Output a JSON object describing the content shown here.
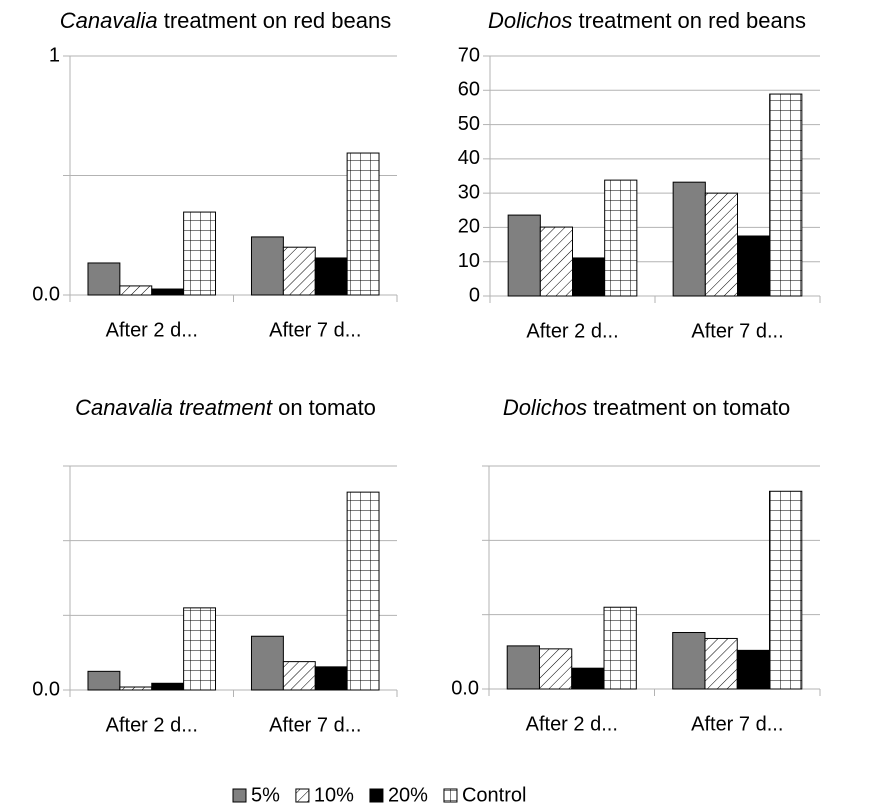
{
  "chart_data": [
    {
      "type": "bar",
      "title": [
        {
          "text": "Canavalia",
          "italic": true
        },
        {
          "text": " treatment on red beans",
          "italic": false
        }
      ],
      "categories": [
        "After 2 d...",
        "After 7 d..."
      ],
      "series": [
        {
          "values": [
            0.134,
            0.243
          ]
        },
        {
          "values": [
            0.038,
            0.2
          ]
        },
        {
          "values": [
            0.025,
            0.155
          ]
        },
        {
          "values": [
            0.347,
            0.594
          ]
        }
      ],
      "ylim": [
        0,
        1
      ],
      "yticks": [
        {
          "value": 0,
          "label": "0.0"
        },
        {
          "value": 0.5,
          "label": null
        },
        1
      ],
      "grid": true
    },
    {
      "type": "bar",
      "title": [
        {
          "text": "Dolichos",
          "italic": true
        },
        {
          "text": " treatment on red beans",
          "italic": false
        }
      ],
      "categories": [
        "After 2 d...",
        "After 7 d..."
      ],
      "series": [
        {
          "values": [
            23.6,
            33.2
          ]
        },
        {
          "values": [
            20.1,
            30
          ]
        },
        {
          "values": [
            11.1,
            17.5
          ]
        },
        {
          "values": [
            33.8,
            58.9
          ]
        }
      ],
      "ylim": [
        0,
        70
      ],
      "yticks": [
        0,
        10,
        20,
        30,
        40,
        50,
        60,
        70
      ],
      "grid": true
    },
    {
      "type": "bar",
      "title": [
        {
          "text": "Canavalia treatment",
          "italic": true
        },
        {
          "text": " on tomato",
          "italic": false
        }
      ],
      "categories": [
        "After 2 d...",
        "After 7 d..."
      ],
      "series": [
        {
          "values": [
            0.025,
            0.072
          ]
        },
        {
          "values": [
            0.004,
            0.038
          ]
        },
        {
          "values": [
            0.009,
            0.031
          ]
        },
        {
          "values": [
            0.11,
            0.265
          ]
        }
      ],
      "ylim": [
        0,
        0.3
      ],
      "yticks": [
        {
          "value": 0,
          "label": "0.0"
        },
        {
          "value": 0.1,
          "label": null
        },
        {
          "value": 0.2,
          "label": null
        },
        {
          "value": 0.3,
          "label": null
        }
      ],
      "grid": true
    },
    {
      "type": "bar",
      "title": [
        {
          "text": "Dolichos",
          "italic": true
        },
        {
          "text": " treatment on tomato",
          "italic": false
        }
      ],
      "categories": [
        "After 2 d...",
        "After 7 d..."
      ],
      "series": [
        {
          "values": [
            0.058,
            0.076
          ]
        },
        {
          "values": [
            0.054,
            0.068
          ]
        },
        {
          "values": [
            0.028,
            0.052
          ]
        },
        {
          "values": [
            0.11,
            0.266
          ]
        }
      ],
      "ylim": [
        0,
        0.3
      ],
      "yticks": [
        {
          "value": 0,
          "label": "0.0"
        },
        {
          "value": 0.1,
          "label": null
        },
        {
          "value": 0.2,
          "label": null
        },
        {
          "value": 0.3,
          "label": null
        }
      ],
      "grid": true
    }
  ],
  "legend": [
    {
      "name": "5%",
      "color": "#808080",
      "pattern": "solid"
    },
    {
      "name": "10%",
      "color": "#000000",
      "pattern": "hatch"
    },
    {
      "name": "20%",
      "color": "#000000",
      "pattern": "solid"
    },
    {
      "name": "Control",
      "color": "#000000",
      "pattern": "grid"
    }
  ]
}
